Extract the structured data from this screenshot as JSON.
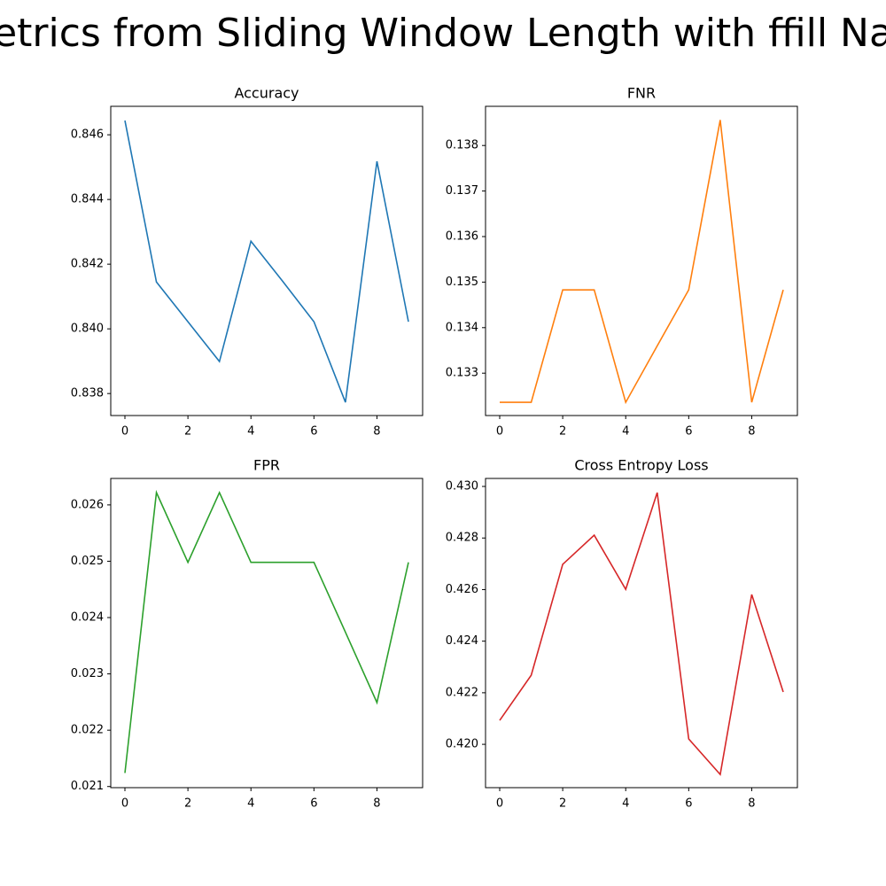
{
  "title": "etrics from Sliding Window Length with ffill Na",
  "chart_data": [
    {
      "type": "line",
      "title": "Accuracy",
      "color": "#1f77b4",
      "x": [
        0,
        1,
        2,
        3,
        4,
        5,
        6,
        7,
        8,
        9
      ],
      "values": [
        0.84644,
        0.84145,
        0.84022,
        0.83899,
        0.84271,
        0.84148,
        0.84022,
        0.83773,
        0.84518,
        0.84022
      ],
      "xlim": [
        -0.45,
        9.45
      ],
      "xticks": [
        0,
        2,
        4,
        6,
        8
      ],
      "ylim": [
        0.83732,
        0.84688
      ],
      "yticks": [
        0.838,
        {
          "value": 0.84,
          "label": "0.840"
        },
        0.842,
        0.844,
        0.846
      ]
    },
    {
      "type": "line",
      "title": "FNR",
      "color": "#ff7f0e",
      "x": [
        0,
        1,
        2,
        3,
        4,
        5,
        6,
        7,
        8,
        9
      ],
      "values": [
        0.13236,
        0.13236,
        0.13483,
        0.13483,
        0.13236,
        0.1336,
        0.13483,
        0.13856,
        0.13236,
        0.13483
      ],
      "xlim": [
        -0.45,
        9.45
      ],
      "xticks": [
        0,
        2,
        4,
        6,
        8
      ],
      "ylim": [
        0.13207,
        0.13886
      ],
      "yticks": [
        0.133,
        0.134,
        0.135,
        0.136,
        0.137,
        0.138
      ]
    },
    {
      "type": "line",
      "title": "FPR",
      "color": "#2ca02c",
      "x": [
        0,
        1,
        2,
        3,
        4,
        5,
        6,
        7,
        8,
        9
      ],
      "values": [
        0.02124,
        0.02622,
        0.02498,
        0.02622,
        0.02498,
        0.02498,
        0.02498,
        0.02374,
        0.02249,
        0.02498
      ],
      "xlim": [
        -0.45,
        9.45
      ],
      "xticks": [
        0,
        2,
        4,
        6,
        8
      ],
      "ylim": [
        0.02098,
        0.02647
      ],
      "yticks": [
        0.021,
        0.022,
        0.023,
        0.024,
        0.025,
        0.026
      ]
    },
    {
      "type": "line",
      "title": "Cross Entropy Loss",
      "color": "#d62728",
      "x": [
        0,
        1,
        2,
        3,
        4,
        5,
        6,
        7,
        8,
        9
      ],
      "values": [
        0.42093,
        0.42268,
        0.42698,
        0.42811,
        0.42601,
        0.42976,
        0.42021,
        0.41883,
        0.42581,
        0.42203
      ],
      "xlim": [
        -0.45,
        9.45
      ],
      "xticks": [
        0,
        2,
        4,
        6,
        8
      ],
      "ylim": [
        0.41832,
        0.43031
      ],
      "yticks": [
        {
          "value": 0.42,
          "label": "0.420"
        },
        0.422,
        0.424,
        0.426,
        0.428,
        {
          "value": 0.43,
          "label": "0.430"
        }
      ]
    }
  ]
}
